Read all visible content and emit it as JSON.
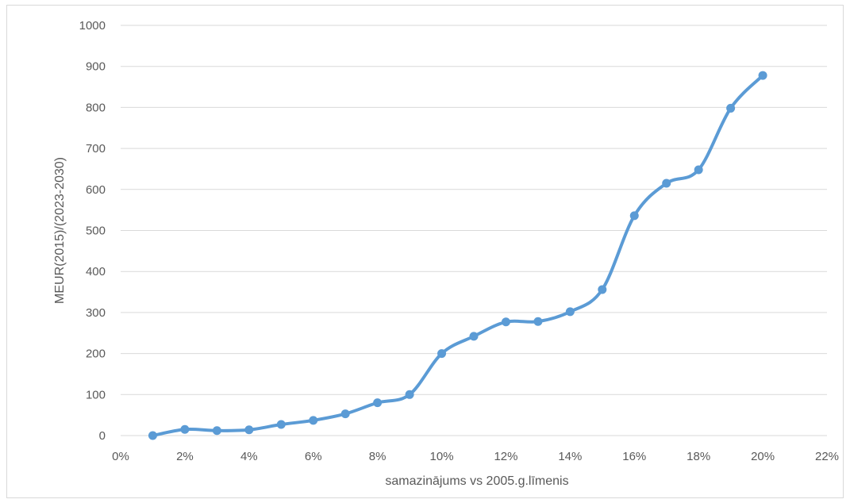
{
  "chart_data": {
    "type": "line",
    "title": "",
    "xlabel": "samazinājums vs 2005.g.līmenis",
    "ylabel": "MEUR(2015)/(2023-2030)",
    "xlim": [
      0,
      22
    ],
    "ylim": [
      0,
      1000
    ],
    "x_ticks": [
      0,
      2,
      4,
      6,
      8,
      10,
      12,
      14,
      16,
      18,
      20,
      22
    ],
    "x_tick_labels": [
      "0%",
      "2%",
      "4%",
      "6%",
      "8%",
      "10%",
      "12%",
      "14%",
      "16%",
      "18%",
      "20%",
      "22%"
    ],
    "y_ticks": [
      0,
      100,
      200,
      300,
      400,
      500,
      600,
      700,
      800,
      900,
      1000
    ],
    "y_tick_labels": [
      "0",
      "100",
      "200",
      "300",
      "400",
      "500",
      "600",
      "700",
      "800",
      "900",
      "1000"
    ],
    "grid": true,
    "legend": "none",
    "smooth": true,
    "color": "#5b9bd5",
    "series": [
      {
        "x": [
          1,
          2,
          3,
          4,
          5,
          6,
          7,
          8,
          9,
          10,
          11,
          12,
          13,
          14,
          15,
          16,
          17,
          18,
          19,
          20
        ],
        "values": [
          0,
          15,
          12,
          14,
          27,
          37,
          53,
          80,
          100,
          200,
          242,
          277,
          278,
          302,
          356,
          536,
          615,
          648,
          798,
          878
        ]
      }
    ]
  }
}
